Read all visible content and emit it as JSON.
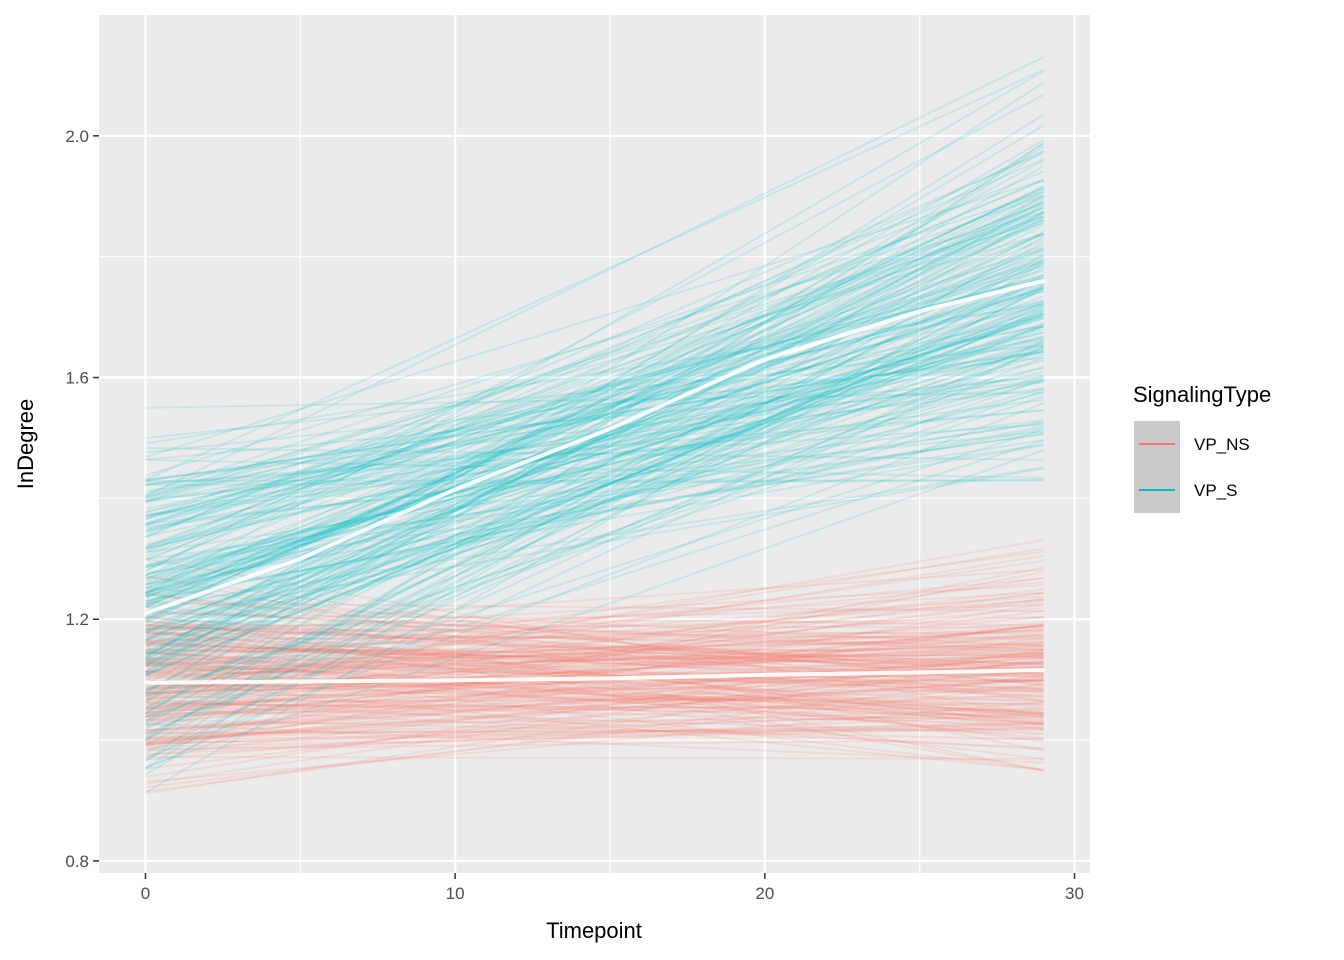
{
  "chart_data": {
    "type": "line",
    "xlabel": "Timepoint",
    "ylabel": "InDegree",
    "xlim": [
      -1.5,
      30.5
    ],
    "ylim": [
      0.78,
      2.2
    ],
    "x_ticks": [
      0,
      10,
      20,
      30
    ],
    "x_tick_labels": [
      "0",
      "10",
      "20",
      "30"
    ],
    "y_ticks": [
      0.8,
      1.2,
      1.6,
      2.0
    ],
    "y_tick_labels": [
      "0.8",
      "1.2",
      "1.6",
      "2.0"
    ],
    "grid": true,
    "legend": {
      "title": "SignalingType",
      "position": "right",
      "entries": [
        {
          "label": "VP_NS",
          "color": "#F8766D"
        },
        {
          "label": "VP_S",
          "color": "#00BFC4"
        }
      ]
    },
    "individual_lines": {
      "x_range": [
        0,
        29
      ],
      "VP_NS": {
        "count": 200,
        "start_range": [
          0.87,
          1.3
        ],
        "end_range": [
          0.95,
          1.34
        ]
      },
      "VP_S": {
        "count": 200,
        "start_range": [
          0.86,
          1.55
        ],
        "end_range": [
          1.43,
          2.15
        ]
      }
    },
    "series": [
      {
        "name": "VP_NS",
        "color": "#F8766D",
        "x": [
          0,
          5,
          10,
          15,
          20,
          25,
          29
        ],
        "values": [
          1.095,
          1.097,
          1.099,
          1.102,
          1.108,
          1.112,
          1.116
        ]
      },
      {
        "name": "VP_S",
        "color": "#00BFC4",
        "x": [
          0,
          5,
          10,
          15,
          20,
          25,
          29
        ],
        "values": [
          1.21,
          1.3,
          1.415,
          1.515,
          1.63,
          1.71,
          1.76
        ]
      }
    ]
  }
}
